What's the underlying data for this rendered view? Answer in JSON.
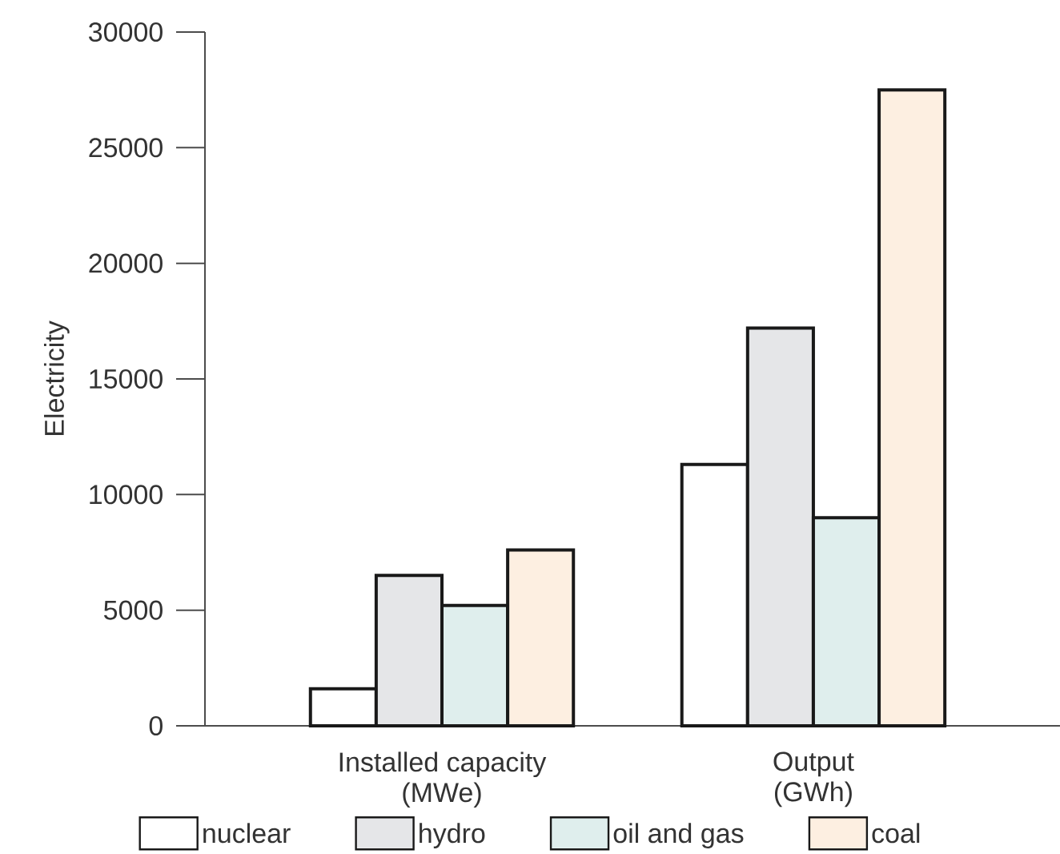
{
  "chart_data": {
    "type": "bar",
    "ylabel": "Electricity",
    "categories": [
      "Installed capacity (MWe)",
      "Output (GWh)"
    ],
    "series": [
      {
        "name": "nuclear",
        "color": "#ffffff",
        "values": [
          1600,
          11300
        ]
      },
      {
        "name": "hydro",
        "color": "#e5e6e8",
        "values": [
          6500,
          17200
        ]
      },
      {
        "name": "oil and gas",
        "color": "#dfeeed",
        "values": [
          5200,
          9000
        ]
      },
      {
        "name": "coal",
        "color": "#fdefe1",
        "values": [
          7600,
          27500
        ]
      }
    ],
    "ylim": [
      0,
      30000
    ],
    "yticks": [
      0,
      5000,
      10000,
      15000,
      20000,
      25000,
      30000
    ],
    "grid": false,
    "legend": "bottom"
  }
}
